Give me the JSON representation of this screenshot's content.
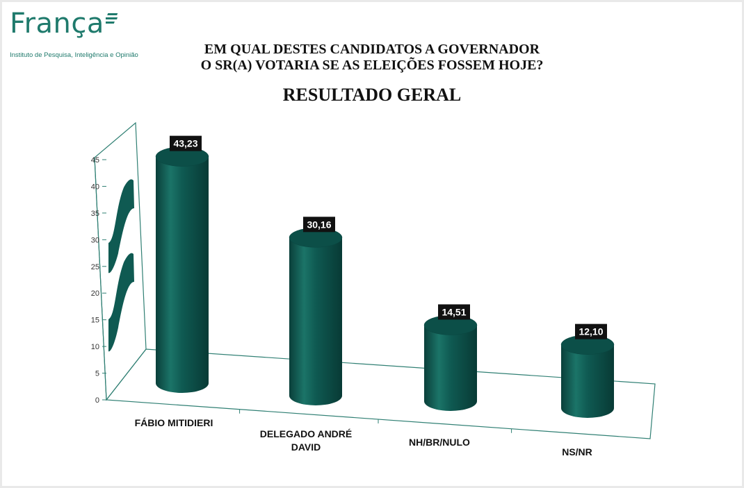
{
  "logo": {
    "brand": "França",
    "subtitle": "Instituto de Pesquisa, Inteligência e Opinião",
    "color": "#1f7a6c"
  },
  "chart_data": {
    "type": "bar",
    "title_line1": "EM QUAL DESTES CANDIDATOS A GOVERNADOR",
    "title_line2": "O SR(A) VOTARIA SE AS ELEIÇÕES FOSSEM HOJE?",
    "subtitle": "RESULTADO GERAL",
    "categories": [
      [
        "FÁBIO MITIDIERI"
      ],
      [
        "DELEGADO ANDRÉ",
        "DAVID"
      ],
      [
        "NH/BR/NULO"
      ],
      [
        "NS/NR"
      ]
    ],
    "values": [
      43.23,
      30.16,
      14.51,
      12.1
    ],
    "value_labels": [
      "43,23",
      "30,16",
      "14,51",
      "12,10"
    ],
    "yticks": [
      "0",
      "5",
      "10",
      "15",
      "20",
      "25",
      "30",
      "35",
      "40",
      "45"
    ],
    "ylim": [
      0,
      45
    ],
    "bar_color": "#0f5a52",
    "axis_color": "#2f7f73"
  }
}
